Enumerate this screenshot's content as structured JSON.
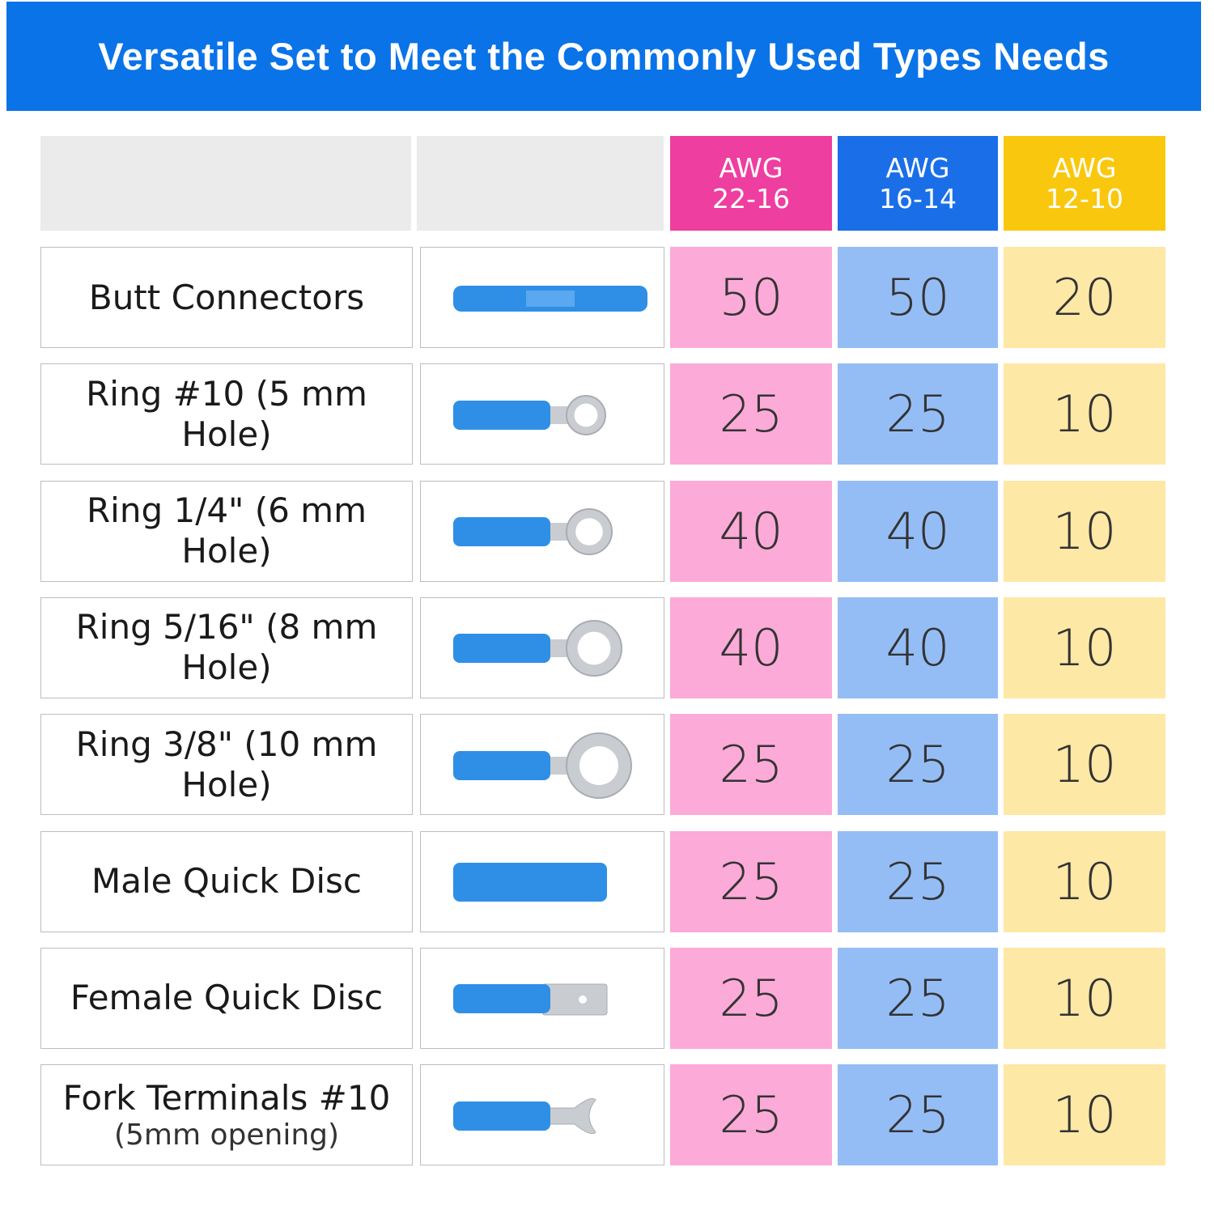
{
  "title": "Versatile Set to Meet the Commonly Used Types Needs",
  "table": {
    "header": [
      {
        "unit": "AWG",
        "range": "22-16"
      },
      {
        "unit": "AWG",
        "range": "16-14"
      },
      {
        "unit": "AWG",
        "range": "12-10"
      }
    ],
    "rows": [
      {
        "name": "Butt Connectors",
        "counts": [
          50,
          50,
          20
        ]
      },
      {
        "name": "Ring #10 (5 mm Hole)",
        "counts": [
          25,
          25,
          10
        ]
      },
      {
        "name": "Ring 1/4\" (6 mm Hole)",
        "counts": [
          40,
          40,
          10
        ]
      },
      {
        "name": "Ring 5/16\" (8 mm Hole)",
        "counts": [
          40,
          40,
          10
        ]
      },
      {
        "name": "Ring 3/8\" (10 mm Hole)",
        "counts": [
          25,
          25,
          10
        ]
      },
      {
        "name": "Male Quick Disc",
        "counts": [
          25,
          25,
          10
        ]
      },
      {
        "name": "Female Quick Disc",
        "counts": [
          25,
          25,
          10
        ]
      },
      {
        "name": "Fork Terminals #10",
        "note": "(5mm opening)",
        "counts": [
          25,
          25,
          10
        ]
      }
    ]
  }
}
